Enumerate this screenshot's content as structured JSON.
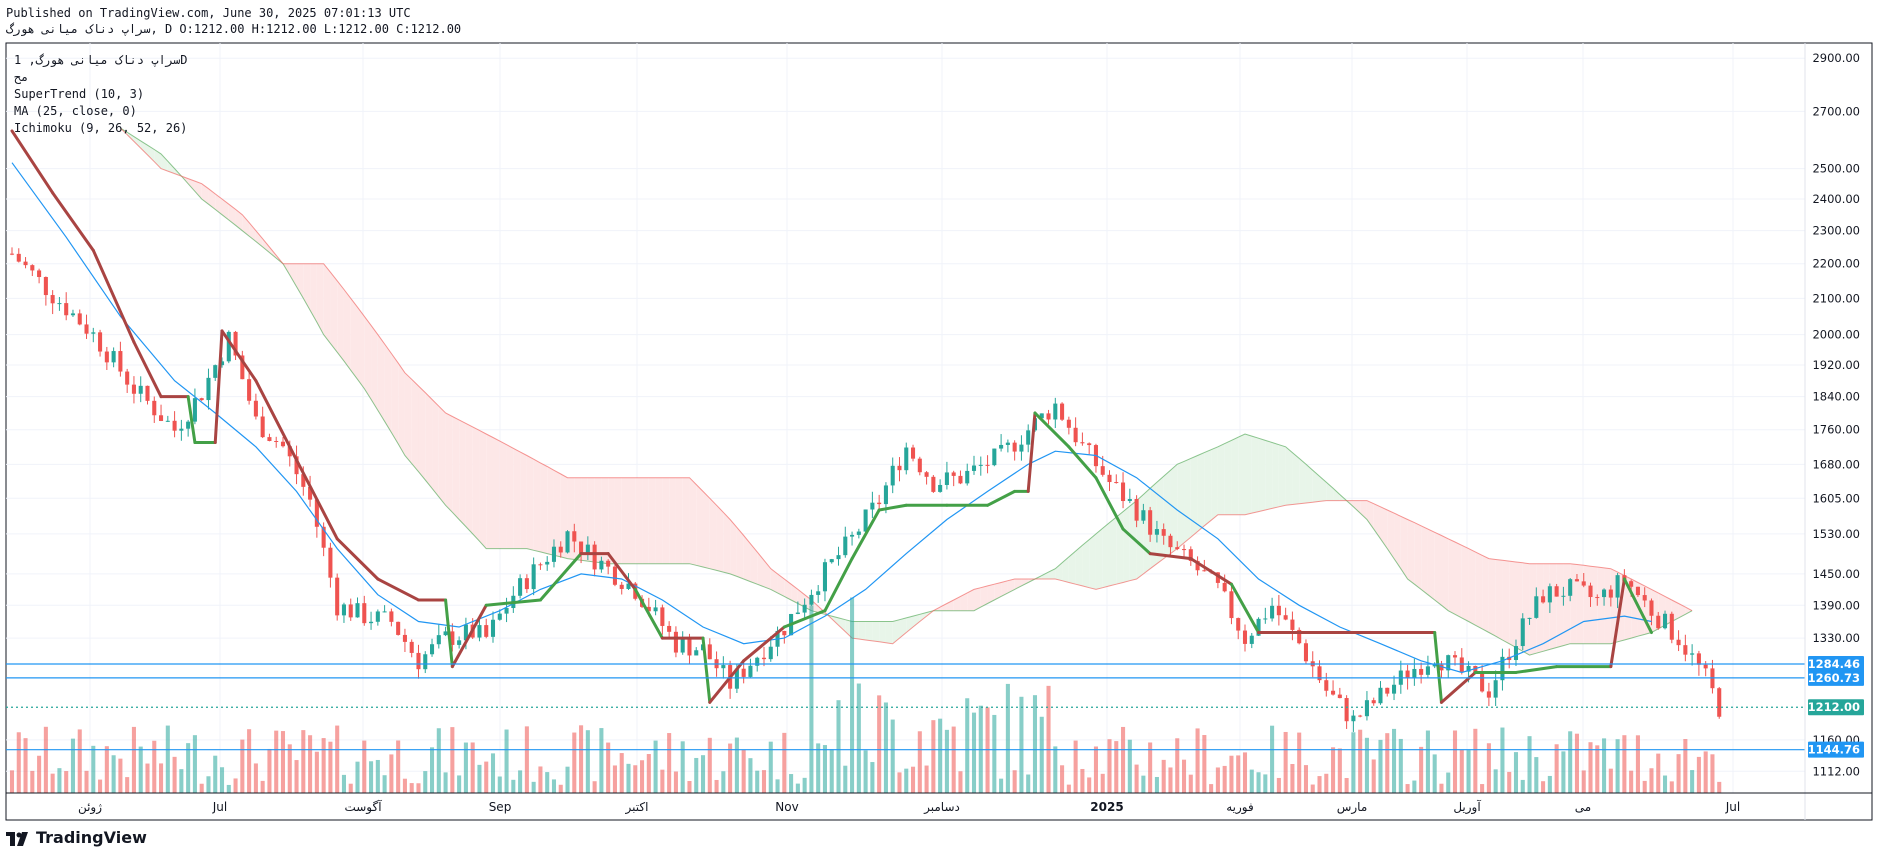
{
  "header": {
    "published": "Published on TradingView.com, June 30, 2025 07:01:13 UTC",
    "symbol_line": "سراپ دناک میانی هورگ, D O:1212.00 H:1212.00 L:1212.00 C:1212.00"
  },
  "legend": {
    "symbol": "سراپ دناک میانی هورگ, 1D",
    "subtitle": "مح",
    "indicators": [
      "SuperTrend (10, 3)",
      "MA (25, close, 0)",
      "Ichimoku (9, 26, 52, 26)"
    ]
  },
  "footer": {
    "brand": "TradingView"
  },
  "colors": {
    "up": "#26a69a",
    "down": "#ef5350",
    "supertrend_up": "#43a047",
    "supertrend_down": "#a94442",
    "ma": "#2196f3",
    "cloud_bull": "#e8f5e9",
    "cloud_bear": "#fde7e7",
    "hline": "#2196f3",
    "last_price": "#26a69a"
  },
  "chart_data": {
    "type": "candlestick",
    "timeframe": "1D",
    "x_labels": [
      "ژوئن",
      "Jul",
      "آگوست",
      "Sep",
      "اکتبر",
      "Nov",
      "دسامبر",
      "2025",
      "فوریه",
      "مارس",
      "آوریل",
      "می",
      "Jul"
    ],
    "y_ticks": [
      2900,
      2700,
      2500,
      2400,
      2300,
      2200,
      2100,
      2000,
      1920,
      1840,
      1760,
      1680,
      1605,
      1530,
      1450,
      1390,
      1330,
      1160,
      1112
    ],
    "y_scale": "log",
    "y_range": [
      1080,
      2960
    ],
    "price_labels": [
      {
        "label": "1284.46",
        "value": 1284.46,
        "kind": "hline"
      },
      {
        "label": "1260.73",
        "value": 1260.73,
        "kind": "hline"
      },
      {
        "label": "1212.00",
        "value": 1212.0,
        "kind": "last"
      },
      {
        "label": "1144.76",
        "value": 1144.76,
        "kind": "hline"
      }
    ],
    "key_points": {
      "close": [
        [
          0,
          2230
        ],
        [
          6,
          2110
        ],
        [
          12,
          2000
        ],
        [
          18,
          1860
        ],
        [
          24,
          1760
        ],
        [
          28,
          1850
        ],
        [
          32,
          1990
        ],
        [
          36,
          1780
        ],
        [
          40,
          1720
        ],
        [
          44,
          1600
        ],
        [
          48,
          1390
        ],
        [
          52,
          1370
        ],
        [
          56,
          1360
        ],
        [
          60,
          1290
        ],
        [
          64,
          1330
        ],
        [
          68,
          1340
        ],
        [
          70,
          1330
        ],
        [
          74,
          1410
        ],
        [
          78,
          1470
        ],
        [
          82,
          1530
        ],
        [
          86,
          1480
        ],
        [
          92,
          1420
        ],
        [
          98,
          1320
        ],
        [
          102,
          1310
        ],
        [
          106,
          1250
        ],
        [
          110,
          1300
        ],
        [
          114,
          1350
        ],
        [
          118,
          1420
        ],
        [
          124,
          1520
        ],
        [
          128,
          1600
        ],
        [
          132,
          1720
        ],
        [
          136,
          1640
        ],
        [
          140,
          1650
        ],
        [
          146,
          1700
        ],
        [
          150,
          1760
        ],
        [
          154,
          1820
        ],
        [
          158,
          1720
        ],
        [
          162,
          1640
        ],
        [
          166,
          1580
        ],
        [
          170,
          1510
        ],
        [
          174,
          1470
        ],
        [
          178,
          1420
        ],
        [
          182,
          1330
        ],
        [
          186,
          1390
        ],
        [
          190,
          1320
        ],
        [
          194,
          1240
        ],
        [
          198,
          1190
        ],
        [
          202,
          1230
        ],
        [
          206,
          1270
        ],
        [
          210,
          1300
        ],
        [
          214,
          1270
        ],
        [
          218,
          1240
        ],
        [
          222,
          1330
        ],
        [
          226,
          1410
        ],
        [
          230,
          1420
        ],
        [
          234,
          1400
        ],
        [
          238,
          1440
        ],
        [
          242,
          1380
        ],
        [
          246,
          1330
        ],
        [
          250,
          1260
        ],
        [
          252,
          1212
        ]
      ],
      "supertrend": [
        [
          0,
          2630
        ],
        [
          6,
          2420
        ],
        [
          12,
          2240
        ],
        [
          18,
          1980
        ],
        [
          22,
          1840
        ],
        [
          26,
          1840
        ],
        [
          27,
          1730
        ],
        [
          30,
          1730
        ],
        [
          31,
          2010
        ],
        [
          36,
          1880
        ],
        [
          42,
          1690
        ],
        [
          48,
          1520
        ],
        [
          54,
          1440
        ],
        [
          60,
          1400
        ],
        [
          64,
          1400
        ],
        [
          65,
          1280
        ],
        [
          70,
          1390
        ],
        [
          78,
          1400
        ],
        [
          84,
          1490
        ],
        [
          88,
          1490
        ],
        [
          92,
          1420
        ],
        [
          96,
          1330
        ],
        [
          102,
          1330
        ],
        [
          103,
          1220
        ],
        [
          108,
          1290
        ],
        [
          114,
          1350
        ],
        [
          120,
          1380
        ],
        [
          124,
          1480
        ],
        [
          128,
          1580
        ],
        [
          132,
          1590
        ],
        [
          138,
          1590
        ],
        [
          144,
          1590
        ],
        [
          148,
          1620
        ],
        [
          150,
          1620
        ],
        [
          151,
          1800
        ],
        [
          156,
          1720
        ],
        [
          160,
          1650
        ],
        [
          164,
          1540
        ],
        [
          168,
          1490
        ],
        [
          174,
          1480
        ],
        [
          180,
          1430
        ],
        [
          184,
          1340
        ],
        [
          196,
          1340
        ],
        [
          208,
          1340
        ],
        [
          210,
          1340
        ],
        [
          211,
          1220
        ],
        [
          216,
          1270
        ],
        [
          222,
          1270
        ],
        [
          228,
          1280
        ],
        [
          236,
          1280
        ],
        [
          238,
          1440
        ],
        [
          242,
          1340
        ]
      ],
      "ma25": [
        [
          0,
          2520
        ],
        [
          8,
          2280
        ],
        [
          16,
          2050
        ],
        [
          24,
          1880
        ],
        [
          30,
          1800
        ],
        [
          36,
          1720
        ],
        [
          42,
          1620
        ],
        [
          48,
          1500
        ],
        [
          54,
          1410
        ],
        [
          60,
          1360
        ],
        [
          66,
          1350
        ],
        [
          72,
          1380
        ],
        [
          78,
          1420
        ],
        [
          84,
          1450
        ],
        [
          90,
          1440
        ],
        [
          96,
          1400
        ],
        [
          102,
          1350
        ],
        [
          108,
          1320
        ],
        [
          114,
          1330
        ],
        [
          120,
          1370
        ],
        [
          126,
          1420
        ],
        [
          132,
          1490
        ],
        [
          138,
          1560
        ],
        [
          144,
          1620
        ],
        [
          150,
          1680
        ],
        [
          154,
          1710
        ],
        [
          160,
          1700
        ],
        [
          166,
          1650
        ],
        [
          172,
          1580
        ],
        [
          178,
          1520
        ],
        [
          184,
          1440
        ],
        [
          190,
          1390
        ],
        [
          196,
          1350
        ],
        [
          202,
          1320
        ],
        [
          208,
          1290
        ],
        [
          214,
          1270
        ],
        [
          220,
          1290
        ],
        [
          226,
          1320
        ],
        [
          232,
          1360
        ],
        [
          238,
          1370
        ],
        [
          242,
          1360
        ]
      ],
      "cloud_a": [
        [
          16,
          2640
        ],
        [
          22,
          2550
        ],
        [
          28,
          2400
        ],
        [
          34,
          2300
        ],
        [
          40,
          2200
        ],
        [
          46,
          2000
        ],
        [
          52,
          1860
        ],
        [
          58,
          1700
        ],
        [
          64,
          1590
        ],
        [
          70,
          1500
        ],
        [
          76,
          1500
        ],
        [
          82,
          1480
        ],
        [
          88,
          1470
        ],
        [
          94,
          1470
        ],
        [
          100,
          1470
        ],
        [
          106,
          1450
        ],
        [
          112,
          1420
        ],
        [
          118,
          1380
        ],
        [
          124,
          1360
        ],
        [
          130,
          1360
        ],
        [
          136,
          1380
        ],
        [
          142,
          1380
        ],
        [
          148,
          1420
        ],
        [
          154,
          1460
        ],
        [
          160,
          1530
        ],
        [
          166,
          1600
        ],
        [
          172,
          1680
        ],
        [
          178,
          1720
        ],
        [
          182,
          1750
        ],
        [
          188,
          1720
        ],
        [
          194,
          1640
        ],
        [
          200,
          1560
        ],
        [
          206,
          1440
        ],
        [
          212,
          1380
        ],
        [
          218,
          1340
        ],
        [
          224,
          1300
        ],
        [
          230,
          1320
        ],
        [
          236,
          1320
        ],
        [
          242,
          1340
        ],
        [
          248,
          1380
        ]
      ],
      "cloud_b": [
        [
          16,
          2640
        ],
        [
          22,
          2500
        ],
        [
          28,
          2450
        ],
        [
          34,
          2350
        ],
        [
          40,
          2200
        ],
        [
          46,
          2200
        ],
        [
          52,
          2050
        ],
        [
          58,
          1900
        ],
        [
          64,
          1800
        ],
        [
          70,
          1750
        ],
        [
          76,
          1700
        ],
        [
          82,
          1650
        ],
        [
          88,
          1650
        ],
        [
          94,
          1650
        ],
        [
          100,
          1650
        ],
        [
          106,
          1560
        ],
        [
          112,
          1460
        ],
        [
          118,
          1400
        ],
        [
          124,
          1330
        ],
        [
          130,
          1320
        ],
        [
          136,
          1380
        ],
        [
          142,
          1420
        ],
        [
          148,
          1440
        ],
        [
          154,
          1440
        ],
        [
          160,
          1420
        ],
        [
          166,
          1440
        ],
        [
          172,
          1500
        ],
        [
          178,
          1570
        ],
        [
          182,
          1570
        ],
        [
          188,
          1590
        ],
        [
          194,
          1600
        ],
        [
          200,
          1600
        ],
        [
          206,
          1560
        ],
        [
          212,
          1520
        ],
        [
          218,
          1480
        ],
        [
          224,
          1470
        ],
        [
          230,
          1470
        ],
        [
          236,
          1460
        ],
        [
          242,
          1420
        ],
        [
          248,
          1380
        ]
      ]
    }
  }
}
